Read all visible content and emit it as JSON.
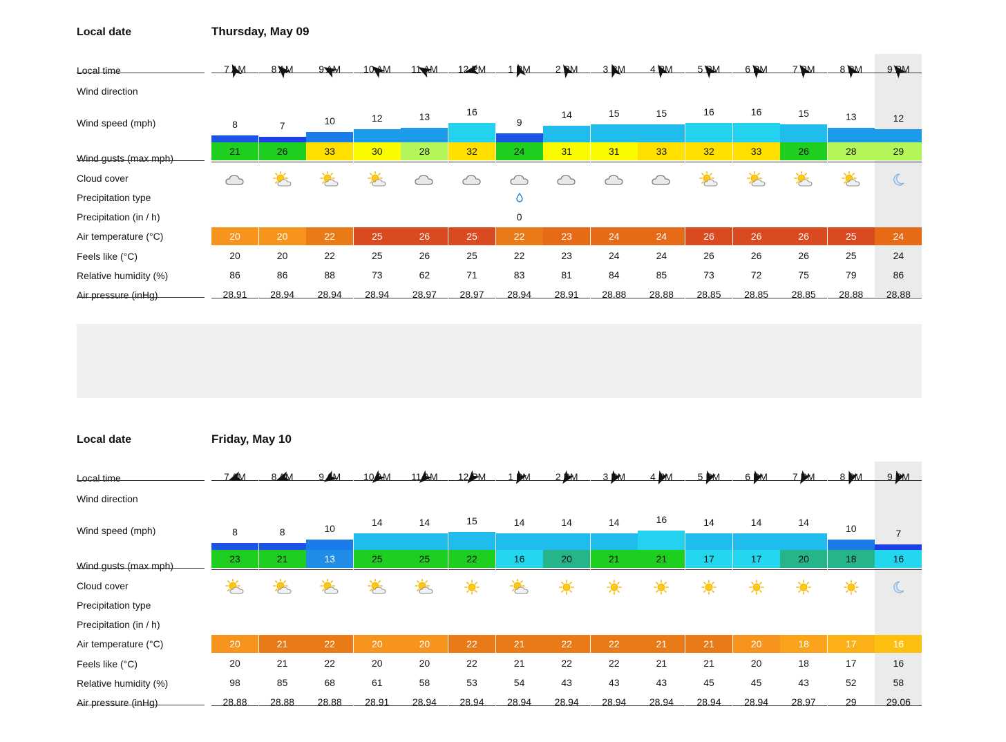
{
  "labels": {
    "local_date": "Local date",
    "local_time": "Local time",
    "wind_direction": "Wind direction",
    "wind_speed": "Wind speed (mph)",
    "wind_gusts": "Wind gusts (max mph)",
    "cloud_cover": "Cloud cover",
    "precip_type": "Precipitation type",
    "precip_rate": "Precipitation (in / h)",
    "air_temp": "Air temperature (°C)",
    "feels_like": "Feels like (°C)",
    "humidity": "Relative humidity (%)",
    "pressure": "Air pressure (inHg)"
  },
  "days": [
    {
      "date": "Thursday, May 09",
      "highlight_index": 14,
      "hours": [
        "7 AM",
        "8 AM",
        "9 AM",
        "10 AM",
        "11 AM",
        "12 PM",
        "1 PM",
        "2 PM",
        "3 PM",
        "4 PM",
        "5 PM",
        "6 PM",
        "7 PM",
        "8 PM",
        "9 PM"
      ],
      "wind_dir_deg": [
        335,
        315,
        300,
        310,
        300,
        260,
        345,
        330,
        340,
        330,
        320,
        325,
        325,
        325,
        320
      ],
      "wind_speed": [
        "8",
        "7",
        "10",
        "12",
        "13",
        "16",
        "9",
        "14",
        "15",
        "15",
        "16",
        "16",
        "15",
        "13",
        "12"
      ],
      "wind_speed_color": [
        "#1c54e8",
        "#1c3fe6",
        "#1a7ce8",
        "#1b9bea",
        "#1b9bea",
        "#23d2ee",
        "#1c54e8",
        "#1fbcec",
        "#1fbcec",
        "#1fbcec",
        "#23d2ee",
        "#23d2ee",
        "#1fbcec",
        "#1b9bea",
        "#1b9bea"
      ],
      "wind_gusts": [
        "21",
        "26",
        "33",
        "30",
        "28",
        "32",
        "24",
        "31",
        "31",
        "33",
        "32",
        "33",
        "26",
        "28",
        "29"
      ],
      "wind_gust_color": [
        "#1fcf1f",
        "#1fcf1f",
        "#ffdf00",
        "#fbfb00",
        "#b4f65a",
        "#ffdf00",
        "#1fcf1f",
        "#fbfb00",
        "#fbfb00",
        "#ffdf00",
        "#ffdf00",
        "#ffdf00",
        "#1fcf1f",
        "#b4f65a",
        "#b4f65a"
      ],
      "cloud": [
        "cloud",
        "partly",
        "partly",
        "partly",
        "cloud",
        "cloud",
        "cloud",
        "cloud",
        "cloud",
        "cloud",
        "partly",
        "partly",
        "partly",
        "partly",
        "moon"
      ],
      "precip_type": [
        "",
        "",
        "",
        "",
        "",
        "",
        "drop",
        "",
        "",
        "",
        "",
        "",
        "",
        "",
        ""
      ],
      "precip_rate": [
        "",
        "",
        "",
        "",
        "",
        "",
        "0",
        "",
        "",
        "",
        "",
        "",
        "",
        "",
        ""
      ],
      "air_temp": [
        "20",
        "20",
        "22",
        "25",
        "26",
        "25",
        "22",
        "23",
        "24",
        "24",
        "26",
        "26",
        "26",
        "25",
        "24"
      ],
      "air_temp_color": [
        "#f7941d",
        "#f7941d",
        "#ea7a15",
        "#d94a21",
        "#d94a21",
        "#d94a21",
        "#ea7a15",
        "#e76a17",
        "#e76a17",
        "#e76a17",
        "#d94a21",
        "#d94a21",
        "#d94a21",
        "#d94a21",
        "#e76a17"
      ],
      "feels_like": [
        "20",
        "20",
        "22",
        "25",
        "26",
        "25",
        "22",
        "23",
        "24",
        "24",
        "26",
        "26",
        "26",
        "25",
        "24"
      ],
      "humidity": [
        "86",
        "86",
        "88",
        "73",
        "62",
        "71",
        "83",
        "81",
        "84",
        "85",
        "73",
        "72",
        "75",
        "79",
        "86"
      ],
      "pressure": [
        "28.91",
        "28.94",
        "28.94",
        "28.94",
        "28.97",
        "28.97",
        "28.94",
        "28.91",
        "28.88",
        "28.88",
        "28.85",
        "28.85",
        "28.85",
        "28.88",
        "28.88"
      ]
    },
    {
      "date": "Friday, May 10",
      "highlight_index": 14,
      "hours": [
        "7 AM",
        "8 AM",
        "9 AM",
        "10 AM",
        "11 AM",
        "12 PM",
        "1 PM",
        "2 PM",
        "3 PM",
        "4 PM",
        "5 PM",
        "6 PM",
        "7 PM",
        "8 PM",
        "9 PM"
      ],
      "wind_dir_deg": [
        250,
        250,
        235,
        225,
        225,
        220,
        210,
        215,
        210,
        205,
        205,
        205,
        210,
        200,
        205
      ],
      "wind_speed": [
        "8",
        "8",
        "10",
        "14",
        "14",
        "15",
        "14",
        "14",
        "14",
        "16",
        "14",
        "14",
        "14",
        "10",
        "7"
      ],
      "wind_speed_color": [
        "#1c54e8",
        "#1c54e8",
        "#1a7ce8",
        "#1fbcec",
        "#1fbcec",
        "#1fbcec",
        "#1fbcec",
        "#1fbcec",
        "#1fbcec",
        "#23d2ee",
        "#1fbcec",
        "#1fbcec",
        "#1fbcec",
        "#1a7ce8",
        "#1c3fe6"
      ],
      "wind_gusts": [
        "23",
        "21",
        "13",
        "25",
        "25",
        "22",
        "16",
        "20",
        "21",
        "21",
        "17",
        "17",
        "20",
        "18",
        "16"
      ],
      "wind_gust_color": [
        "#1fcf1f",
        "#1fcf1f",
        "#1f8de8",
        "#1fcf1f",
        "#1fcf1f",
        "#1fcf1f",
        "#23d8ee",
        "#26b48a",
        "#1fcf1f",
        "#1fcf1f",
        "#23d8ee",
        "#23d8ee",
        "#26b48a",
        "#26b48a",
        "#23d8ee"
      ],
      "cloud": [
        "partly",
        "partly",
        "partly",
        "partly",
        "partly",
        "sun",
        "partly",
        "sun",
        "sun",
        "sun",
        "sun",
        "sun",
        "sun",
        "sun",
        "moon"
      ],
      "precip_type": [
        "",
        "",
        "",
        "",
        "",
        "",
        "",
        "",
        "",
        "",
        "",
        "",
        "",
        "",
        ""
      ],
      "precip_rate": [
        "",
        "",
        "",
        "",
        "",
        "",
        "",
        "",
        "",
        "",
        "",
        "",
        "",
        "",
        ""
      ],
      "air_temp": [
        "20",
        "21",
        "22",
        "20",
        "20",
        "22",
        "21",
        "22",
        "22",
        "21",
        "21",
        "20",
        "18",
        "17",
        "16"
      ],
      "air_temp_color": [
        "#f7941d",
        "#ea7a15",
        "#ea7a15",
        "#f7941d",
        "#f7941d",
        "#ea7a15",
        "#ea7a15",
        "#ea7a15",
        "#ea7a15",
        "#ea7a15",
        "#ea7a15",
        "#f7941d",
        "#fba31a",
        "#fbb116",
        "#fdc010"
      ],
      "feels_like": [
        "20",
        "21",
        "22",
        "20",
        "20",
        "22",
        "21",
        "22",
        "22",
        "21",
        "21",
        "20",
        "18",
        "17",
        "16"
      ],
      "humidity": [
        "98",
        "85",
        "68",
        "61",
        "58",
        "53",
        "54",
        "43",
        "43",
        "43",
        "45",
        "45",
        "43",
        "52",
        "58"
      ],
      "pressure": [
        "28.88",
        "28.88",
        "28.88",
        "28.91",
        "28.94",
        "28.94",
        "28.94",
        "28.94",
        "28.94",
        "28.94",
        "28.94",
        "28.94",
        "28.97",
        "29",
        "29.06"
      ]
    }
  ]
}
